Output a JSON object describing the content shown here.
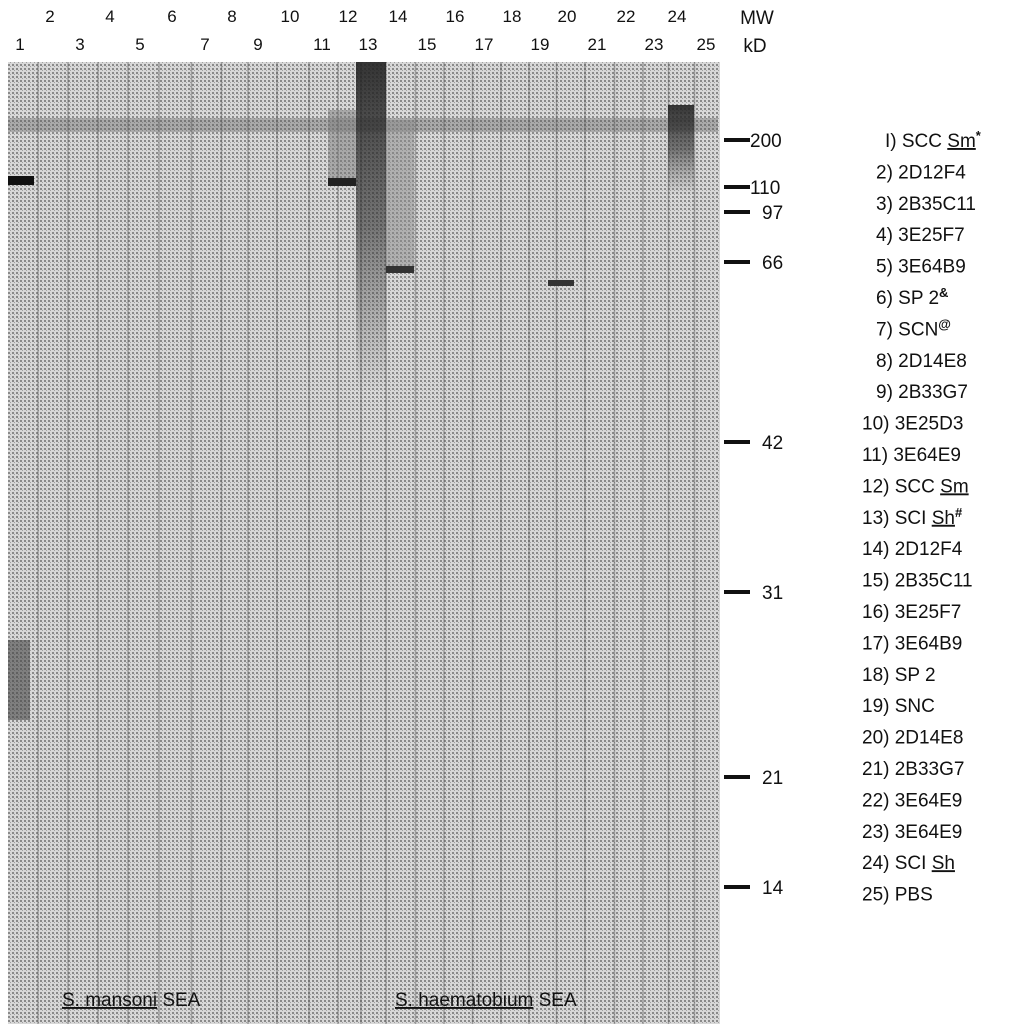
{
  "lanes": [
    "1",
    "2",
    "3",
    "4",
    "5",
    "6",
    "7",
    "8",
    "9",
    "10",
    "11",
    "12",
    "13",
    "14",
    "15",
    "16",
    "17",
    "18",
    "19",
    "20",
    "21",
    "22",
    "23",
    "24",
    "25"
  ],
  "mw_header": [
    "MW",
    "kD"
  ],
  "markers": [
    "200",
    "110",
    "97",
    "66",
    "42",
    "31",
    "21",
    "14"
  ],
  "legend": [
    [
      {
        "text": "I) SCC "
      },
      {
        "text": "Sm",
        "underline": true
      },
      {
        "text": "*",
        "sup": true
      }
    ],
    [
      {
        "text": "2) 2D12F4"
      }
    ],
    [
      {
        "text": "3) 2B35C11"
      }
    ],
    [
      {
        "text": "4) 3E25F7"
      }
    ],
    [
      {
        "text": "5) 3E64B9"
      }
    ],
    [
      {
        "text": "6) SP 2"
      },
      {
        "text": "&",
        "sup": true
      }
    ],
    [
      {
        "text": "7) SCN"
      },
      {
        "text": "@",
        "sup": true
      }
    ],
    [
      {
        "text": "8) 2D14E8"
      }
    ],
    [
      {
        "text": "9) 2B33G7"
      }
    ],
    [
      {
        "text": "10) 3E25D3"
      }
    ],
    [
      {
        "text": "11) 3E64E9"
      }
    ],
    [
      {
        "text": "12) SCC "
      },
      {
        "text": "Sm",
        "underline": true
      }
    ],
    [
      {
        "text": "13) SCI "
      },
      {
        "text": "Sh",
        "underline": true
      },
      {
        "text": "#",
        "sup": true
      }
    ],
    [
      {
        "text": "14) 2D12F4"
      }
    ],
    [
      {
        "text": "15) 2B35C11"
      }
    ],
    [
      {
        "text": "16) 3E25F7"
      }
    ],
    [
      {
        "text": "17) 3E64B9"
      }
    ],
    [
      {
        "text": "18) SP 2"
      }
    ],
    [
      {
        "text": "19) SNC"
      }
    ],
    [
      {
        "text": "20) 2D14E8"
      }
    ],
    [
      {
        "text": "21) 2B33G7"
      }
    ],
    [
      {
        "text": "22) 3E64E9"
      }
    ],
    [
      {
        "text": "23) 3E64E9"
      }
    ],
    [
      {
        "text": "24) SCI "
      },
      {
        "text": "Sh",
        "underline": true
      }
    ],
    [
      {
        "text": "25) PBS"
      }
    ]
  ],
  "species": [
    [
      {
        "text": "S. mansoni",
        "underline": true
      },
      {
        "text": " SEA"
      }
    ],
    [
      {
        "text": "S. haematobium",
        "underline": true
      },
      {
        "text": " SEA"
      }
    ]
  ]
}
